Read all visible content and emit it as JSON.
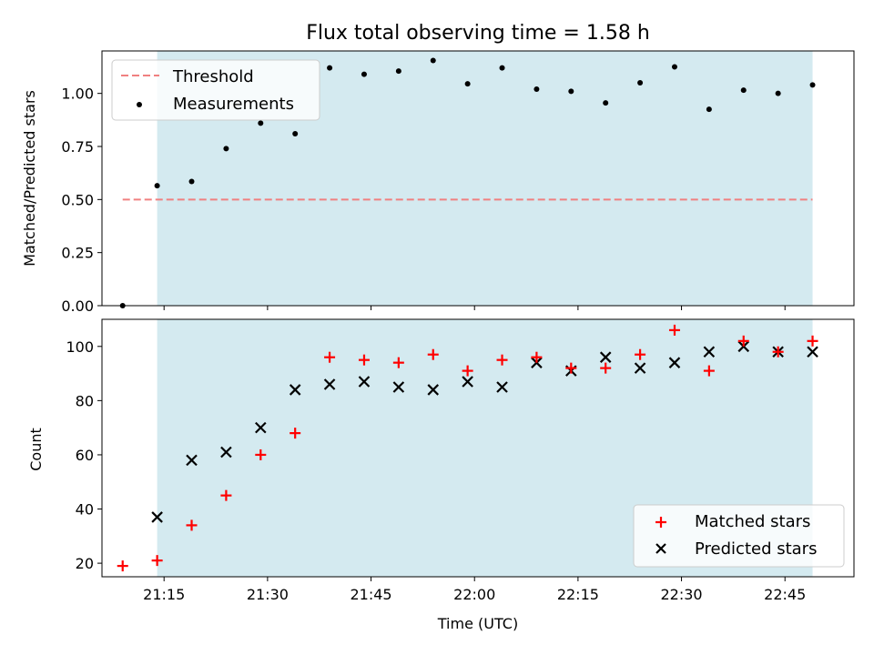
{
  "colors": {
    "shade": "#d4eaf0",
    "threshold": "#f08080",
    "measurement": "#000000",
    "matched": "#ff0000",
    "predicted": "#000000"
  },
  "chart_data": [
    {
      "type": "scatter",
      "title": "Flux total observing time = 1.58 h",
      "xlabel": "",
      "ylabel": "Matched/Predicted stars",
      "ylim": [
        0,
        1.2
      ],
      "yticks": [
        "0.00",
        "0.25",
        "0.50",
        "0.75",
        "1.00"
      ],
      "ytick_values": [
        0,
        0.25,
        0.5,
        0.75,
        1.0
      ],
      "shaded_x_range": [
        "21:14",
        "22:49"
      ],
      "legend_position": "top-left",
      "threshold": {
        "name": "Threshold",
        "x": [
          "21:09",
          "22:49"
        ],
        "y": 0.5
      },
      "series": [
        {
          "name": "Measurements",
          "x": [
            "21:09",
            "21:14",
            "21:19",
            "21:24",
            "21:29",
            "21:34",
            "21:39",
            "21:44",
            "21:49",
            "21:54",
            "21:59",
            "22:04",
            "22:09",
            "22:14",
            "22:19",
            "22:24",
            "22:29",
            "22:34",
            "22:39",
            "22:44",
            "22:49"
          ],
          "y": [
            0.0,
            0.565,
            0.585,
            0.74,
            0.86,
            0.81,
            1.12,
            1.09,
            1.105,
            1.155,
            1.045,
            1.12,
            1.02,
            1.01,
            0.955,
            1.05,
            1.125,
            0.925,
            1.015,
            1.0,
            1.04
          ]
        }
      ]
    },
    {
      "type": "scatter",
      "xlabel": "Time (UTC)",
      "ylabel": "Count",
      "ylim": [
        15,
        110
      ],
      "yticks": [
        "20",
        "40",
        "60",
        "80",
        "100"
      ],
      "ytick_values": [
        20,
        40,
        60,
        80,
        100
      ],
      "xlim": [
        "21:06",
        "22:55"
      ],
      "xticks": [
        "21:15",
        "21:30",
        "21:45",
        "22:00",
        "22:15",
        "22:30",
        "22:45"
      ],
      "shaded_x_range": [
        "21:14",
        "22:49"
      ],
      "legend_position": "lower-right",
      "series": [
        {
          "name": "Matched stars",
          "x": [
            "21:09",
            "21:14",
            "21:19",
            "21:24",
            "21:29",
            "21:34",
            "21:39",
            "21:44",
            "21:49",
            "21:54",
            "21:59",
            "22:04",
            "22:09",
            "22:14",
            "22:19",
            "22:24",
            "22:29",
            "22:34",
            "22:39",
            "22:44",
            "22:49"
          ],
          "y": [
            19,
            21,
            34,
            45,
            60,
            68,
            96,
            95,
            94,
            97,
            91,
            95,
            96,
            92,
            92,
            97,
            106,
            91,
            102,
            98,
            102
          ]
        },
        {
          "name": "Predicted stars",
          "x": [
            "21:14",
            "21:19",
            "21:24",
            "21:29",
            "21:34",
            "21:39",
            "21:44",
            "21:49",
            "21:54",
            "21:59",
            "22:04",
            "22:09",
            "22:14",
            "22:19",
            "22:24",
            "22:29",
            "22:34",
            "22:39",
            "22:44",
            "22:49"
          ],
          "y": [
            37,
            58,
            61,
            70,
            84,
            86,
            87,
            85,
            84,
            87,
            85,
            94,
            91,
            96,
            92,
            94,
            98,
            100,
            98,
            98
          ]
        }
      ]
    }
  ]
}
